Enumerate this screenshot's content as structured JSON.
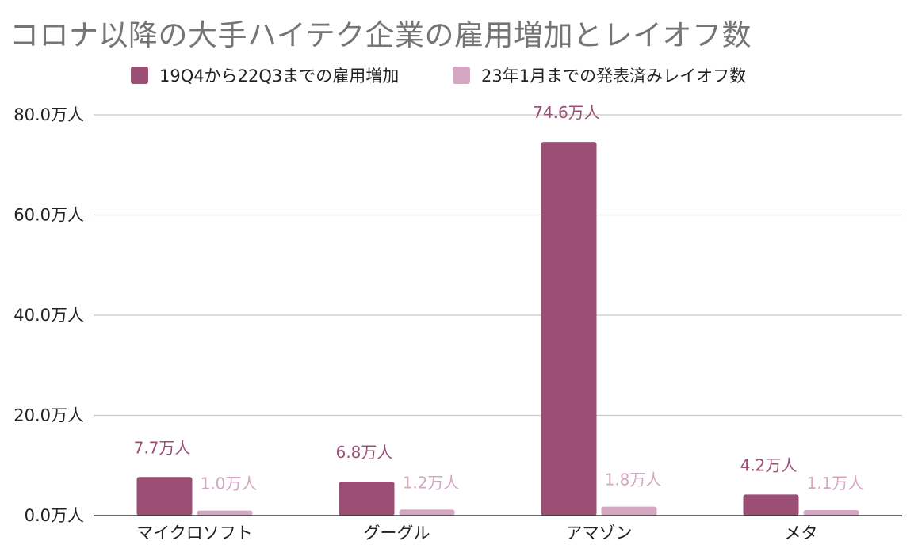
{
  "chart_data": {
    "type": "bar",
    "title": "コロナ以降の大手ハイテク企業の雇用増加とレイオフ数",
    "categories": [
      "マイクロソフト",
      "グーグル",
      "アマゾン",
      "メタ"
    ],
    "series": [
      {
        "name": "19Q4から22Q3までの雇用増加",
        "color": "#9b4f75",
        "values": [
          7.7,
          6.8,
          74.6,
          4.2
        ],
        "labels": [
          "7.7万人",
          "6.8万人",
          "74.6万人",
          "4.2万人"
        ]
      },
      {
        "name": "23年1月までの発表済みレイオフ数",
        "color": "#d4a6c1",
        "values": [
          1.0,
          1.2,
          1.8,
          1.1
        ],
        "labels": [
          "1.0万人",
          "1.2万人",
          "1.8万人",
          "1.1万人"
        ]
      }
    ],
    "y_ticks": [
      0,
      20,
      40,
      60,
      80
    ],
    "y_tick_labels": [
      "0.0万人",
      "20.0万人",
      "40.0万人",
      "60.0万人",
      "80.0万人"
    ],
    "ylim": [
      0,
      80
    ],
    "grid": true,
    "legend_position": "top"
  }
}
